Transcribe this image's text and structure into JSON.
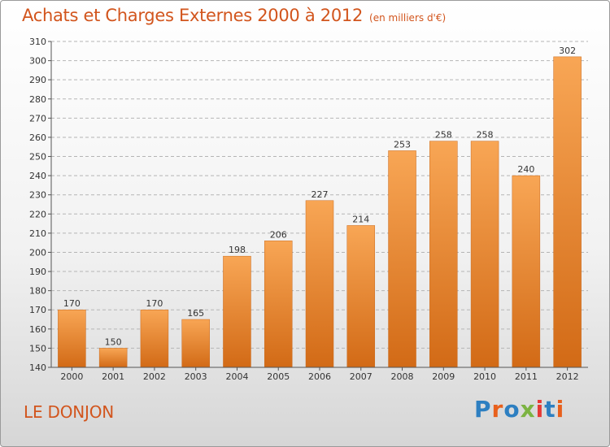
{
  "title": "Achats et Charges Externes 2000 à 2012",
  "unit_note": "(en milliers d'€)",
  "commune": "LE DONJON",
  "logo": {
    "text": "Proxiti",
    "letter_colors": [
      "#2d7fc1",
      "#e8601c",
      "#2d7fc1",
      "#7cb342",
      "#e53935",
      "#2d7fc1",
      "#e8601c"
    ]
  },
  "colors": {
    "title": "#d2551d",
    "bar_top": "#f8a655",
    "bar_bottom": "#d26a16",
    "grid": "#b5b5b5"
  },
  "chart_data": {
    "type": "bar",
    "title": "Achats et Charges Externes 2000 à 2012",
    "subtitle": "(en milliers d'€)",
    "xlabel": "",
    "ylabel": "",
    "categories": [
      "2000",
      "2001",
      "2002",
      "2003",
      "2004",
      "2005",
      "2006",
      "2007",
      "2008",
      "2009",
      "2010",
      "2011",
      "2012"
    ],
    "values": [
      170,
      150,
      170,
      165,
      198,
      206,
      227,
      214,
      253,
      258,
      258,
      240,
      302
    ],
    "ylim": [
      140,
      310
    ],
    "yticks": [
      140,
      150,
      160,
      170,
      180,
      190,
      200,
      210,
      220,
      230,
      240,
      250,
      260,
      270,
      280,
      290,
      300,
      310
    ],
    "grid": true,
    "grid_style": "dashed-horizontal",
    "legend": "none",
    "data_labels": true
  }
}
